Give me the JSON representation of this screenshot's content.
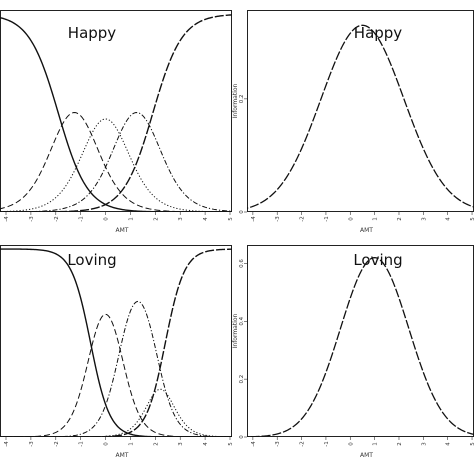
{
  "chart_data": [
    {
      "type": "line",
      "panel": "top-left",
      "title": "Happy",
      "xlabel": "AMT",
      "ylabel": "",
      "xlim": [
        -4,
        5
      ],
      "ylim": [
        0,
        1
      ],
      "x_ticks": [
        "-4",
        "-3",
        "-2",
        "-1",
        "0",
        "1",
        "2",
        "3",
        "4",
        "5"
      ],
      "y_ticks": [],
      "curve_kind": "category",
      "series": [
        {
          "name": "",
          "kind": "cat0",
          "style": "solid"
        },
        {
          "name": "",
          "kind": "cat1",
          "style": "dashed"
        },
        {
          "name": "",
          "kind": "cat2",
          "style": "dotted"
        },
        {
          "name": "",
          "kind": "cat3",
          "style": "dashdot"
        },
        {
          "name": "",
          "kind": "cat4",
          "style": "longdash"
        }
      ],
      "params": {
        "a": 1.7,
        "b": [
          -1.9,
          -0.6,
          0.6,
          1.9
        ]
      }
    },
    {
      "type": "line",
      "panel": "top-right",
      "title": "Happy",
      "xlabel": "AMT",
      "ylabel": "Information",
      "xlim": [
        -4,
        5
      ],
      "ylim": [
        0,
        0.35
      ],
      "x_ticks": [
        "-4",
        "-3",
        "-2",
        "-1",
        "0",
        "1",
        "2",
        "3",
        "4",
        "5"
      ],
      "y_ticks": [
        {
          "value": 0,
          "label": "0"
        },
        {
          "value": 0.2,
          "label": "0.2"
        }
      ],
      "curve_kind": "information",
      "series": [
        {
          "name": "",
          "style": "longdash"
        }
      ],
      "params": {
        "peak": 0.33,
        "center": 0.5,
        "sigma": 1.7
      }
    },
    {
      "type": "line",
      "panel": "bottom-left",
      "title": "Loving",
      "xlabel": "AMT",
      "ylabel": "",
      "xlim": [
        -4,
        5
      ],
      "ylim": [
        0,
        1
      ],
      "x_ticks": [
        "-4",
        "-3",
        "-2",
        "-1",
        "0",
        "1",
        "2",
        "3",
        "4",
        "5"
      ],
      "y_ticks": [],
      "curve_kind": "category",
      "series": [
        {
          "name": "",
          "kind": "cat0",
          "style": "solid"
        },
        {
          "name": "",
          "kind": "cat1",
          "style": "dashed"
        },
        {
          "name": "",
          "kind": "cat2",
          "style": "dashdot"
        },
        {
          "name": "",
          "kind": "cat3",
          "style": "dotted"
        },
        {
          "name": "",
          "kind": "cat4",
          "style": "longdash"
        }
      ],
      "params": {
        "a": 2.6,
        "b": [
          -0.6,
          0.6,
          2.0,
          2.4
        ]
      }
    },
    {
      "type": "line",
      "panel": "bottom-right",
      "title": "Loving",
      "xlabel": "AMT",
      "ylabel": "Information",
      "xlim": [
        -4,
        5
      ],
      "ylim": [
        0,
        0.65
      ],
      "x_ticks": [
        "-4",
        "-3",
        "-2",
        "-1",
        "0",
        "1",
        "2",
        "3",
        "4",
        "5"
      ],
      "y_ticks": [
        {
          "value": 0,
          "label": "0"
        },
        {
          "value": 0.2,
          "label": "0.2"
        },
        {
          "value": 0.4,
          "label": "0.4"
        },
        {
          "value": 0.6,
          "label": "0.6"
        }
      ],
      "curve_kind": "information",
      "series": [
        {
          "name": "",
          "style": "longdash"
        }
      ],
      "params": {
        "peak": 0.62,
        "center": 1.0,
        "sigma": 1.4
      }
    }
  ]
}
